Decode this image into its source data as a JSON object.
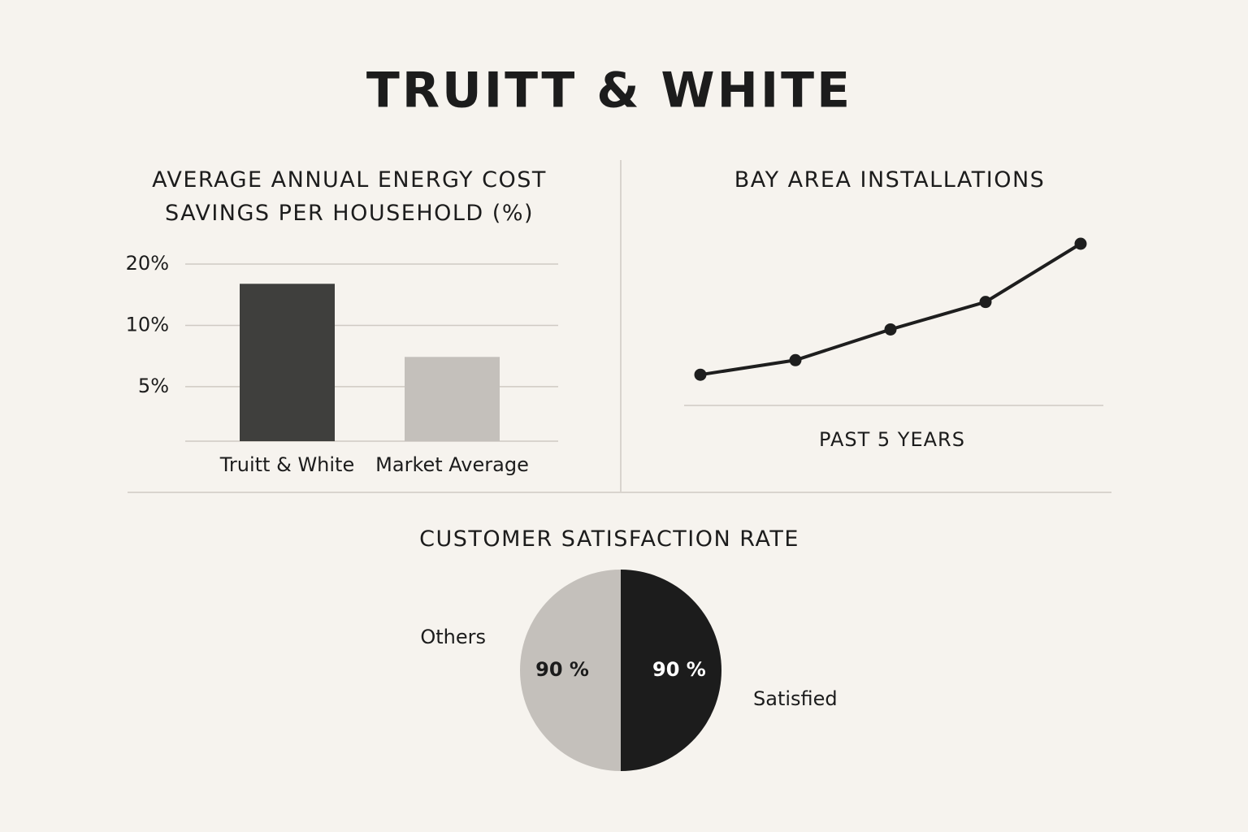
{
  "title": "TRUITT & WHITE",
  "chart_data": [
    {
      "type": "bar",
      "title": "AVERAGE ANNUAL ENERGY COST SAVINGS PER HOUSEHOLD (%)",
      "categories": [
        "Truitt & White",
        "Market Average"
      ],
      "values": [
        16,
        7
      ],
      "colors": [
        "#3f3f3d",
        "#c4c0bb"
      ],
      "log": true,
      "ylim": [
        2.7,
        20
      ],
      "yticks": [
        {
          "value": 20,
          "label": "20%"
        },
        {
          "value": 10,
          "label": "10%"
        },
        {
          "value": 5,
          "label": "5%"
        }
      ],
      "grid": true
    },
    {
      "type": "line",
      "title": "BAY AREA INSTALLATIONS",
      "xlabel": "PAST 5 YEARS",
      "categories": [
        null,
        null,
        null,
        null,
        null
      ],
      "values": [
        1.9,
        2.8,
        4.7,
        6.4,
        10
      ],
      "color": "#1e1e1e",
      "ylim": [
        0,
        10
      ]
    },
    {
      "type": "pie",
      "title": "CUSTOMER SATISFACTION RATE",
      "categories": [
        "Others",
        "Satisfied"
      ],
      "values": [
        90,
        90
      ],
      "value_labels": [
        "90 %",
        "90 %"
      ],
      "colors": [
        "#c4c0bb",
        "#1c1c1c"
      ]
    }
  ]
}
